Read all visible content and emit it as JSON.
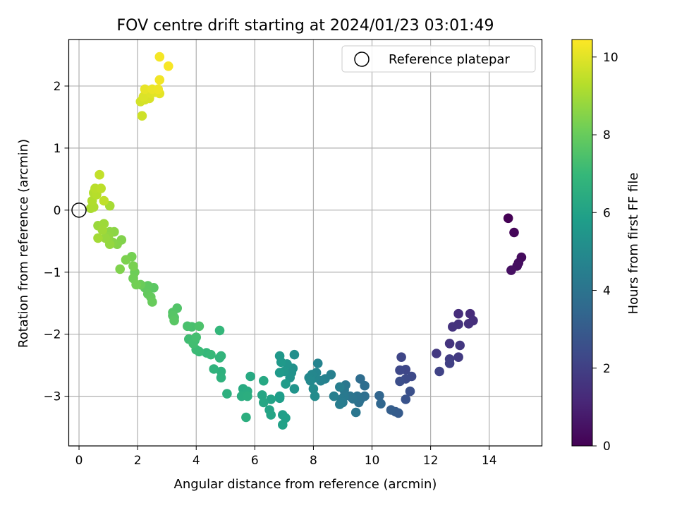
{
  "chart_data": {
    "type": "scatter",
    "title": "FOV centre drift starting at 2024/01/23 03:01:49",
    "xlabel": "Angular distance from reference (arcmin)",
    "ylabel": "Rotation from reference (arcmin)",
    "xlim": [
      -0.35,
      15.8
    ],
    "ylim": [
      -3.8,
      2.75
    ],
    "xticks": [
      0,
      2,
      4,
      6,
      8,
      10,
      12,
      14
    ],
    "yticks": [
      -3,
      -2,
      -1,
      0,
      1,
      2
    ],
    "grid": true,
    "legend": {
      "position": "top-right",
      "entries": [
        "Reference platepar"
      ]
    },
    "reference": {
      "x": 0,
      "y": 0
    },
    "colorbar": {
      "label": "Hours from first FF file",
      "min": 0,
      "max": 10.45,
      "ticks": [
        0,
        2,
        4,
        6,
        8,
        10
      ],
      "colormap": "viridis"
    },
    "points": [
      [
        14.65,
        -0.13,
        0.0
      ],
      [
        14.85,
        -0.36,
        0.15
      ],
      [
        15.1,
        -0.76,
        0.3
      ],
      [
        15.0,
        -0.85,
        0.35
      ],
      [
        14.95,
        -0.9,
        0.4
      ],
      [
        14.75,
        -0.97,
        0.45
      ],
      [
        13.35,
        -1.67,
        1.3
      ],
      [
        12.95,
        -1.67,
        1.35
      ],
      [
        13.45,
        -1.78,
        1.4
      ],
      [
        13.3,
        -1.83,
        1.45
      ],
      [
        12.95,
        -1.84,
        1.5
      ],
      [
        12.75,
        -1.88,
        1.55
      ],
      [
        12.65,
        -2.15,
        1.6
      ],
      [
        13.0,
        -2.18,
        1.7
      ],
      [
        12.2,
        -2.31,
        1.75
      ],
      [
        12.95,
        -2.37,
        1.8
      ],
      [
        12.65,
        -2.4,
        1.9
      ],
      [
        12.65,
        -2.47,
        2.0
      ],
      [
        12.3,
        -2.6,
        2.1
      ],
      [
        11.0,
        -2.37,
        2.2
      ],
      [
        11.15,
        -2.57,
        2.25
      ],
      [
        10.95,
        -2.58,
        2.3
      ],
      [
        11.35,
        -2.68,
        2.35
      ],
      [
        11.15,
        -2.72,
        2.4
      ],
      [
        10.95,
        -2.76,
        2.5
      ],
      [
        11.3,
        -2.92,
        2.6
      ],
      [
        11.15,
        -3.05,
        2.7
      ],
      [
        10.9,
        -3.27,
        3.0
      ],
      [
        10.8,
        -3.25,
        3.05
      ],
      [
        10.65,
        -3.22,
        3.1
      ],
      [
        10.25,
        -2.99,
        3.4
      ],
      [
        10.3,
        -3.12,
        3.45
      ],
      [
        9.6,
        -2.72,
        3.7
      ],
      [
        9.75,
        -2.83,
        3.75
      ],
      [
        9.75,
        -3.0,
        3.8
      ],
      [
        9.6,
        -3.05,
        3.85
      ],
      [
        9.55,
        -3.1,
        3.9
      ],
      [
        9.5,
        -3.0,
        3.95
      ],
      [
        9.35,
        -3.04,
        4.0
      ],
      [
        9.25,
        -3.0,
        4.05
      ],
      [
        9.45,
        -3.26,
        4.1
      ],
      [
        9.1,
        -2.82,
        4.15
      ],
      [
        9.05,
        -2.9,
        4.2
      ],
      [
        9.05,
        -3.0,
        4.25
      ],
      [
        8.95,
        -3.05,
        4.3
      ],
      [
        9.0,
        -3.1,
        4.35
      ],
      [
        8.9,
        -3.13,
        4.4
      ],
      [
        8.9,
        -2.85,
        4.45
      ],
      [
        8.7,
        -3.0,
        4.5
      ],
      [
        8.6,
        -2.65,
        4.55
      ],
      [
        8.4,
        -2.72,
        4.6
      ],
      [
        8.25,
        -2.75,
        4.65
      ],
      [
        8.15,
        -2.47,
        4.7
      ],
      [
        8.1,
        -2.62,
        4.75
      ],
      [
        8.05,
        -2.7,
        4.8
      ],
      [
        7.95,
        -2.65,
        4.85
      ],
      [
        7.85,
        -2.7,
        4.9
      ],
      [
        7.9,
        -2.75,
        4.95
      ],
      [
        8.0,
        -2.88,
        5.0
      ],
      [
        8.05,
        -3.0,
        5.05
      ],
      [
        7.35,
        -2.33,
        5.2
      ],
      [
        7.3,
        -2.55,
        5.25
      ],
      [
        7.25,
        -2.62,
        5.3
      ],
      [
        7.2,
        -2.7,
        5.35
      ],
      [
        7.35,
        -2.88,
        5.4
      ],
      [
        7.1,
        -2.48,
        5.45
      ],
      [
        7.0,
        -2.6,
        5.5
      ],
      [
        6.85,
        -2.35,
        5.55
      ],
      [
        6.9,
        -2.45,
        5.6
      ],
      [
        6.85,
        -2.62,
        5.65
      ],
      [
        7.05,
        -2.8,
        5.7
      ],
      [
        6.85,
        -3.0,
        5.75
      ],
      [
        6.85,
        -3.03,
        5.8
      ],
      [
        6.95,
        -3.3,
        5.85
      ],
      [
        7.05,
        -3.35,
        5.9
      ],
      [
        6.95,
        -3.46,
        5.95
      ],
      [
        6.55,
        -3.05,
        6.0
      ],
      [
        6.5,
        -3.22,
        6.05
      ],
      [
        6.55,
        -3.3,
        6.1
      ],
      [
        6.25,
        -2.98,
        6.15
      ],
      [
        6.3,
        -3.1,
        6.2
      ],
      [
        6.3,
        -2.75,
        6.25
      ],
      [
        5.85,
        -2.68,
        6.3
      ],
      [
        5.6,
        -2.88,
        6.35
      ],
      [
        5.75,
        -2.92,
        6.4
      ],
      [
        5.55,
        -3.0,
        6.45
      ],
      [
        5.75,
        -3.0,
        6.5
      ],
      [
        5.7,
        -3.34,
        6.55
      ],
      [
        5.05,
        -2.96,
        6.6
      ],
      [
        4.85,
        -2.6,
        6.65
      ],
      [
        4.85,
        -2.7,
        6.7
      ],
      [
        4.6,
        -2.56,
        6.75
      ],
      [
        4.85,
        -2.35,
        6.8
      ],
      [
        4.8,
        -2.38,
        6.85
      ],
      [
        4.8,
        -1.94,
        6.9
      ],
      [
        4.35,
        -2.3,
        6.95
      ],
      [
        4.5,
        -2.33,
        7.0
      ],
      [
        4.1,
        -2.28,
        7.05
      ],
      [
        4.0,
        -2.25,
        7.1
      ],
      [
        3.95,
        -2.1,
        7.15
      ],
      [
        3.75,
        -2.08,
        7.2
      ],
      [
        3.9,
        -2.15,
        7.25
      ],
      [
        4.0,
        -2.05,
        7.3
      ],
      [
        3.85,
        -1.88,
        7.35
      ],
      [
        3.7,
        -1.87,
        7.4
      ],
      [
        4.1,
        -1.87,
        7.45
      ],
      [
        3.25,
        -1.73,
        7.5
      ],
      [
        3.35,
        -1.58,
        7.55
      ],
      [
        3.2,
        -1.65,
        7.6
      ],
      [
        3.2,
        -1.7,
        7.65
      ],
      [
        3.25,
        -1.78,
        7.7
      ],
      [
        2.55,
        -1.25,
        7.75
      ],
      [
        2.35,
        -1.22,
        7.8
      ],
      [
        2.25,
        -1.25,
        7.85
      ],
      [
        2.35,
        -1.35,
        7.9
      ],
      [
        2.45,
        -1.4,
        7.95
      ],
      [
        2.5,
        -1.48,
        8.0
      ],
      [
        2.1,
        -1.2,
        8.05
      ],
      [
        1.9,
        -1.0,
        8.1
      ],
      [
        1.85,
        -1.1,
        8.15
      ],
      [
        1.95,
        -1.2,
        8.2
      ],
      [
        1.8,
        -0.75,
        8.25
      ],
      [
        1.85,
        -0.9,
        8.3
      ],
      [
        1.6,
        -0.8,
        8.35
      ],
      [
        1.4,
        -0.95,
        8.4
      ],
      [
        1.45,
        -0.48,
        8.45
      ],
      [
        1.3,
        -0.55,
        8.5
      ],
      [
        1.15,
        -0.52,
        8.55
      ],
      [
        1.2,
        -0.35,
        8.6
      ],
      [
        1.05,
        -0.35,
        8.65
      ],
      [
        1.0,
        -0.43,
        8.7
      ],
      [
        1.05,
        -0.55,
        8.75
      ],
      [
        0.9,
        -0.45,
        8.8
      ],
      [
        0.65,
        -0.25,
        8.85
      ],
      [
        0.85,
        -0.22,
        8.9
      ],
      [
        0.8,
        -0.32,
        8.95
      ],
      [
        0.65,
        -0.45,
        9.0
      ],
      [
        1.05,
        0.07,
        9.05
      ],
      [
        0.4,
        0.03,
        9.1
      ],
      [
        0.5,
        0.05,
        9.15
      ],
      [
        0.45,
        0.15,
        9.2
      ],
      [
        0.5,
        0.28,
        9.25
      ],
      [
        0.6,
        0.25,
        9.3
      ],
      [
        0.55,
        0.35,
        9.35
      ],
      [
        0.75,
        0.35,
        9.4
      ],
      [
        0.85,
        0.15,
        9.45
      ],
      [
        0.7,
        0.57,
        9.5
      ],
      [
        2.15,
        1.52,
        9.7
      ],
      [
        2.1,
        1.75,
        9.75
      ],
      [
        2.25,
        1.78,
        9.8
      ],
      [
        2.4,
        1.8,
        9.85
      ],
      [
        2.2,
        1.83,
        9.9
      ],
      [
        2.45,
        1.88,
        9.95
      ],
      [
        2.6,
        1.9,
        10.0
      ],
      [
        2.75,
        1.88,
        10.05
      ],
      [
        2.25,
        1.95,
        10.1
      ],
      [
        2.5,
        1.95,
        10.15
      ],
      [
        2.7,
        1.95,
        10.2
      ],
      [
        2.75,
        2.1,
        10.25
      ],
      [
        2.75,
        2.47,
        10.3
      ],
      [
        3.05,
        2.32,
        10.35
      ]
    ]
  }
}
